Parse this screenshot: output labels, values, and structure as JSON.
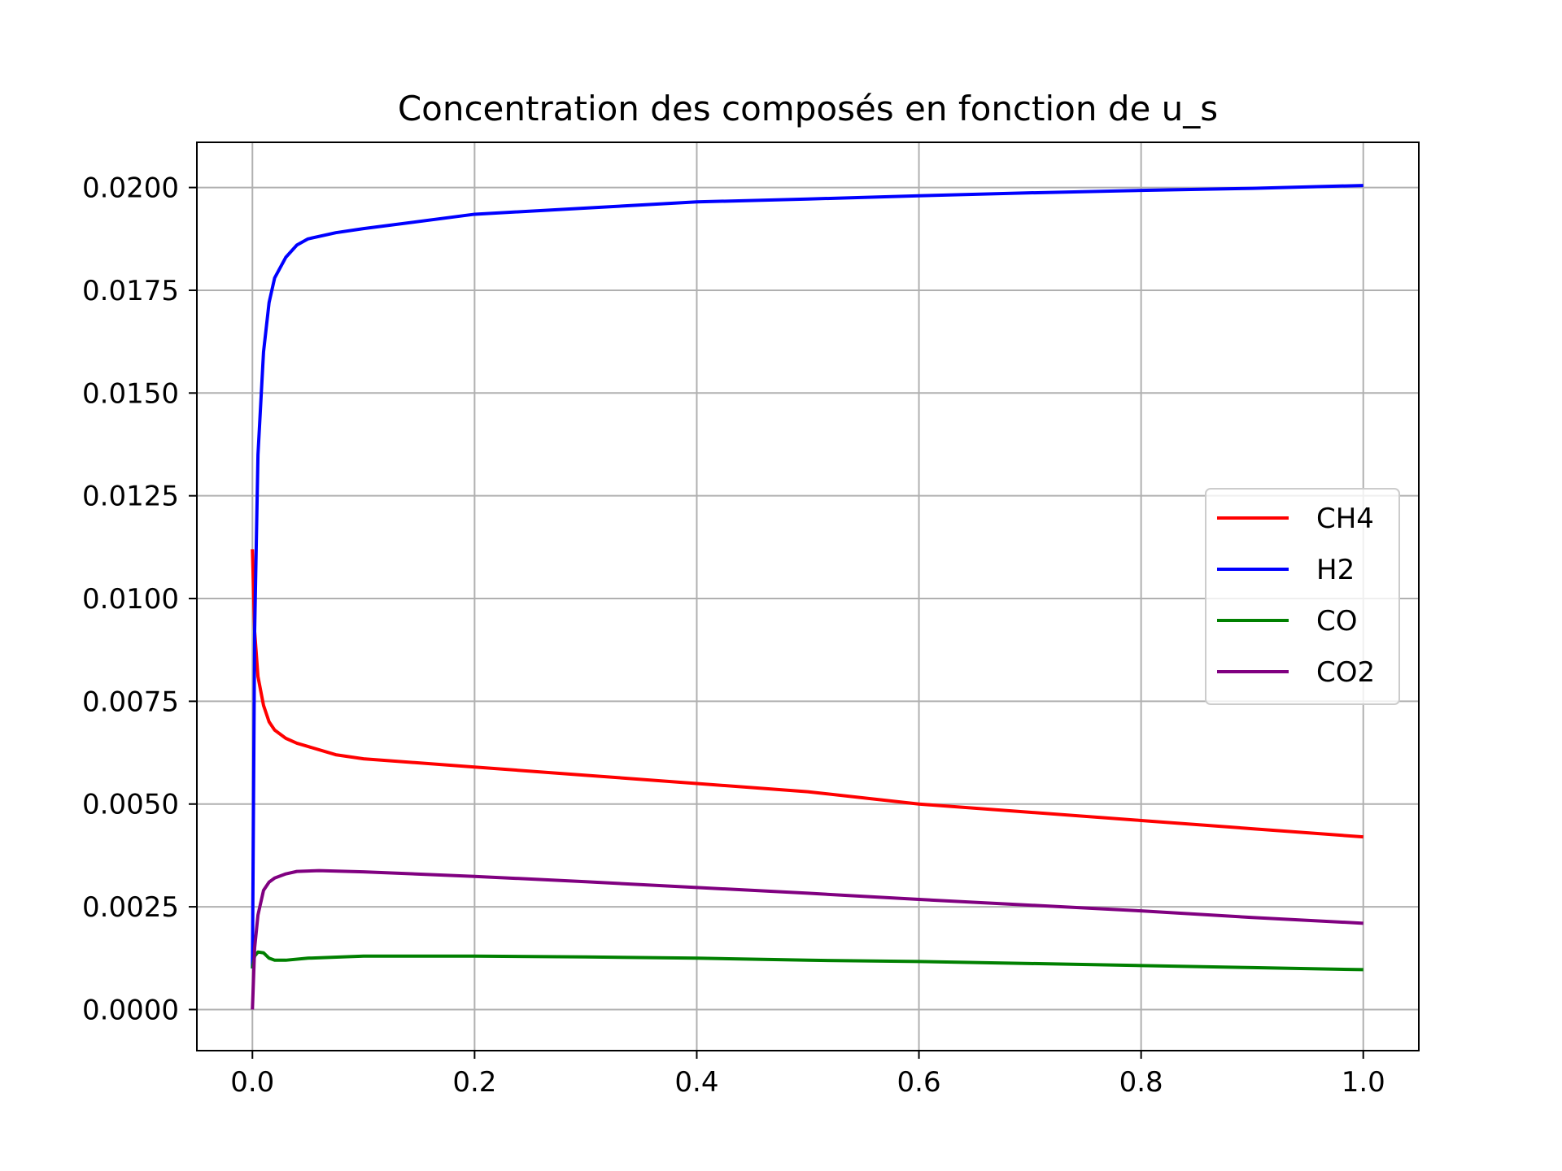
{
  "chart_data": {
    "type": "line",
    "title": "Concentration des composés en fonction de u_s",
    "xlabel": "",
    "ylabel": "",
    "xlim": [
      -0.05,
      1.05
    ],
    "ylim": [
      -0.001,
      0.0211
    ],
    "x_ticks": [
      0.0,
      0.2,
      0.4,
      0.6,
      0.8,
      1.0
    ],
    "x_tick_labels": [
      "0.0",
      "0.2",
      "0.4",
      "0.6",
      "0.8",
      "1.0"
    ],
    "y_ticks": [
      0.0,
      0.0025,
      0.005,
      0.0075,
      0.01,
      0.0125,
      0.015,
      0.0175,
      0.02
    ],
    "y_tick_labels": [
      "0.0000",
      "0.0025",
      "0.0050",
      "0.0075",
      "0.0100",
      "0.0125",
      "0.0150",
      "0.0175",
      "0.0200"
    ],
    "grid": true,
    "legend_position": "center-right",
    "series": [
      {
        "name": "CH4",
        "color": "#ff0000",
        "x": [
          0,
          0.002,
          0.005,
          0.01,
          0.015,
          0.02,
          0.03,
          0.04,
          0.05,
          0.075,
          0.1,
          0.2,
          0.3,
          0.4,
          0.5,
          0.6,
          0.7,
          0.8,
          0.9,
          1.0
        ],
        "y": [
          0.0112,
          0.0092,
          0.0081,
          0.0074,
          0.007,
          0.0068,
          0.0066,
          0.00648,
          0.0064,
          0.0062,
          0.0061,
          0.0059,
          0.0057,
          0.0055,
          0.0053,
          0.005,
          0.0048,
          0.0046,
          0.0044,
          0.0042
        ]
      },
      {
        "name": "H2",
        "color": "#0000ff",
        "x": [
          0,
          0.002,
          0.005,
          0.01,
          0.015,
          0.02,
          0.03,
          0.04,
          0.05,
          0.075,
          0.1,
          0.2,
          0.3,
          0.4,
          0.5,
          0.6,
          0.7,
          0.8,
          0.9,
          1.0
        ],
        "y": [
          0.001,
          0.0092,
          0.0135,
          0.016,
          0.0172,
          0.0178,
          0.0183,
          0.0186,
          0.01875,
          0.0189,
          0.019,
          0.01935,
          0.0195,
          0.01965,
          0.01972,
          0.0198,
          0.01987,
          0.01993,
          0.01998,
          0.02005
        ]
      },
      {
        "name": "CO",
        "color": "#008000",
        "x": [
          0,
          0.002,
          0.005,
          0.01,
          0.015,
          0.02,
          0.03,
          0.05,
          0.1,
          0.2,
          0.3,
          0.4,
          0.5,
          0.6,
          0.7,
          0.8,
          0.9,
          1.0
        ],
        "y": [
          0.001,
          0.0013,
          0.0014,
          0.00138,
          0.00125,
          0.0012,
          0.0012,
          0.00125,
          0.0013,
          0.0013,
          0.00128,
          0.00125,
          0.0012,
          0.00117,
          0.00112,
          0.00107,
          0.00102,
          0.00097
        ]
      },
      {
        "name": "CO2",
        "color": "#800080",
        "x": [
          0,
          0.002,
          0.005,
          0.01,
          0.015,
          0.02,
          0.03,
          0.04,
          0.06,
          0.1,
          0.2,
          0.3,
          0.4,
          0.5,
          0.6,
          0.7,
          0.8,
          0.9,
          1.0
        ],
        "y": [
          0.0,
          0.0015,
          0.0023,
          0.0029,
          0.0031,
          0.0032,
          0.0033,
          0.00336,
          0.00338,
          0.00335,
          0.00324,
          0.00311,
          0.00297,
          0.00283,
          0.00268,
          0.00254,
          0.0024,
          0.00224,
          0.0021
        ]
      }
    ]
  }
}
